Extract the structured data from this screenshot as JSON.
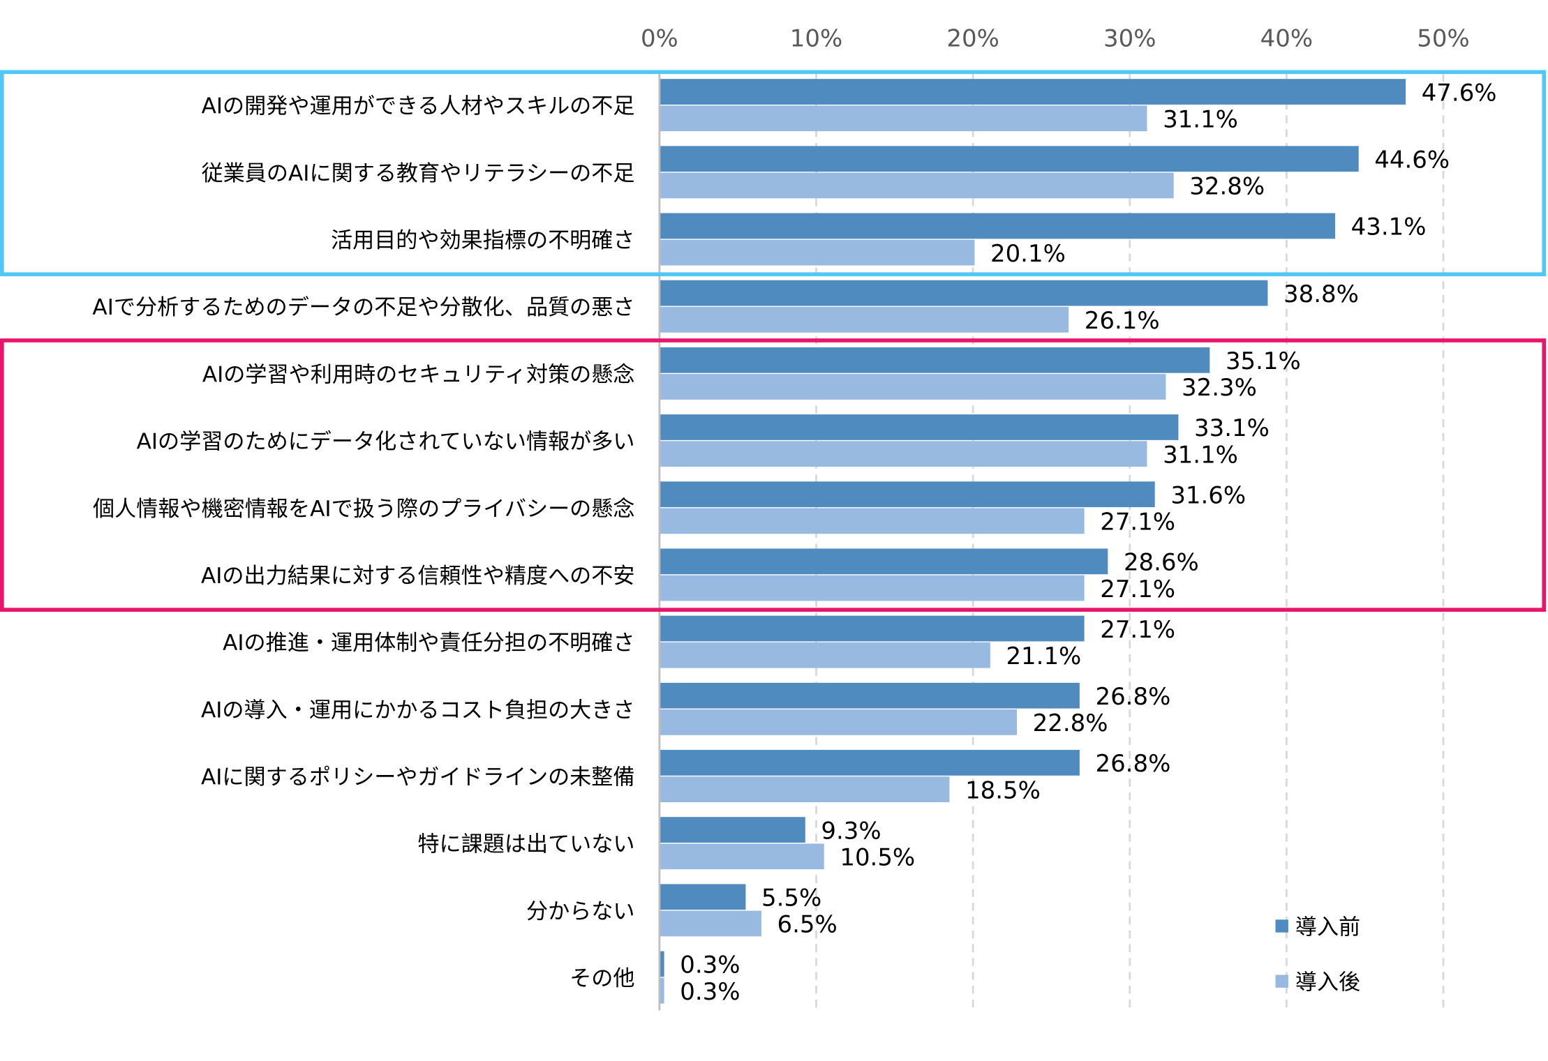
{
  "chart_data": {
    "type": "bar",
    "orientation": "horizontal",
    "xlim": [
      0,
      50
    ],
    "x_ticks": [
      "0%",
      "10%",
      "20%",
      "30%",
      "40%",
      "50%"
    ],
    "grid": true,
    "legend_position": "bottom-right",
    "categories": [
      "AIの開発や運用ができる人材やスキルの不足",
      "従業員のAIに関する教育やリテラシーの不足",
      "活用目的や効果指標の不明確さ",
      "AIで分析するためのデータの不足や分散化、品質の悪さ",
      "AIの学習や利用時のセキュリティ対策の懸念",
      "AIの学習のためにデータ化されていない情報が多い",
      "個人情報や機密情報をAIで扱う際のプライバシーの懸念",
      "AIの出力結果に対する信頼性や精度への不安",
      "AIの推進・運用体制や責任分担の不明確さ",
      "AIの導入・運用にかかるコスト負担の大きさ",
      "AIに関するポリシーやガイドラインの未整備",
      "特に課題は出ていない",
      "分からない",
      "その他"
    ],
    "series": [
      {
        "name": "導入前",
        "color": "#4f8bbf",
        "values": [
          47.6,
          44.6,
          43.1,
          38.8,
          35.1,
          33.1,
          31.6,
          28.6,
          27.1,
          26.8,
          26.8,
          9.3,
          5.5,
          0.3
        ]
      },
      {
        "name": "導入後",
        "color": "#98b9e0",
        "values": [
          31.1,
          32.8,
          20.1,
          26.1,
          32.3,
          31.1,
          27.1,
          27.1,
          21.1,
          22.8,
          18.5,
          10.5,
          6.5,
          0.3
        ]
      }
    ],
    "value_labels": [
      [
        "47.6%",
        "44.6%",
        "43.1%",
        "38.8%",
        "35.1%",
        "33.1%",
        "31.6%",
        "28.6%",
        "27.1%",
        "26.8%",
        "26.8%",
        "9.3%",
        "5.5%",
        "0.3%"
      ],
      [
        "31.1%",
        "32.8%",
        "20.1%",
        "26.1%",
        "32.3%",
        "31.1%",
        "27.1%",
        "27.1%",
        "21.1%",
        "22.8%",
        "18.5%",
        "10.5%",
        "6.5%",
        "0.3%"
      ]
    ],
    "highlight_groups": [
      {
        "color": "#4fc8f5",
        "rows": [
          0,
          2
        ]
      },
      {
        "color": "#e8156b",
        "rows": [
          4,
          7
        ]
      }
    ]
  }
}
